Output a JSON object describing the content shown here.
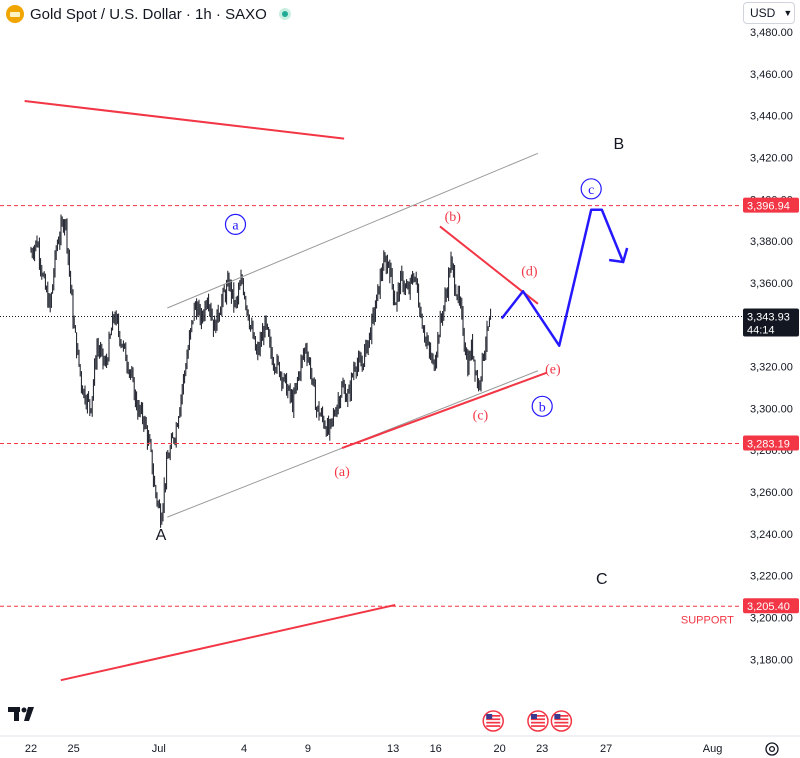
{
  "header": {
    "symbol_title": "Gold Spot / U.S. Dollar · 1h · SAXO",
    "icon": "gold-bars-icon",
    "status_icon": "market-open-icon"
  },
  "currency": {
    "label": "USD",
    "icon": "chevron-down-icon"
  },
  "logo": "tradingview-logo",
  "settings_icon": "gear-icon",
  "colors": {
    "candles": "#131722",
    "annotation_red": "#f23645",
    "projection_blue": "#2518ff",
    "channel_gray": "#9a9a9a",
    "axis_text": "#131722",
    "price_tag_red": "#f23645",
    "price_tag_dark": "#131722"
  },
  "chart_data": {
    "type": "candlestick",
    "title": "Gold Spot / U.S. Dollar · 1h · SAXO",
    "y_axis": {
      "min": 3170,
      "max": 3490,
      "ticks": [
        3180,
        3200,
        3220,
        3240,
        3260,
        3280,
        3300,
        3320,
        3340,
        3360,
        3380,
        3400,
        3420,
        3440,
        3460,
        3480
      ],
      "tick_labels": [
        "3,180.00",
        "3,200.00",
        "3,220.00",
        "3,240.00",
        "3,260.00",
        "3,280.00",
        "3,300.00",
        "3,320.00",
        "3,340.00",
        "3,360.00",
        "3,380.00",
        "3,400.00",
        "3,420.00",
        "3,440.00",
        "3,460.00",
        "3,480.00"
      ]
    },
    "x_axis": {
      "tick_labels": [
        "22",
        "25",
        "Jul",
        "4",
        "9",
        "13",
        "16",
        "20",
        "23",
        "27",
        "Aug"
      ],
      "tick_index": [
        0,
        2,
        6,
        10,
        13,
        17,
        19,
        22,
        24,
        27,
        32
      ]
    },
    "price_path": [
      [
        0,
        3375
      ],
      [
        0.3,
        3380
      ],
      [
        0.6,
        3360
      ],
      [
        0.9,
        3348
      ],
      [
        1.2,
        3378
      ],
      [
        1.6,
        3392
      ],
      [
        2.0,
        3340
      ],
      [
        2.4,
        3310
      ],
      [
        2.8,
        3300
      ],
      [
        3.1,
        3330
      ],
      [
        3.5,
        3320
      ],
      [
        3.9,
        3345
      ],
      [
        4.3,
        3330
      ],
      [
        4.6,
        3320
      ],
      [
        5.0,
        3300
      ],
      [
        5.3,
        3295
      ],
      [
        5.6,
        3280
      ],
      [
        5.8,
        3262
      ],
      [
        6.1,
        3248
      ],
      [
        6.4,
        3275
      ],
      [
        6.8,
        3290
      ],
      [
        7.1,
        3310
      ],
      [
        7.4,
        3330
      ],
      [
        7.7,
        3350
      ],
      [
        8.0,
        3342
      ],
      [
        8.3,
        3355
      ],
      [
        8.6,
        3338
      ],
      [
        8.9,
        3350
      ],
      [
        9.3,
        3360
      ],
      [
        9.6,
        3348
      ],
      [
        9.9,
        3362
      ],
      [
        10.2,
        3345
      ],
      [
        10.6,
        3325
      ],
      [
        11.0,
        3340
      ],
      [
        11.3,
        3325
      ],
      [
        11.7,
        3318
      ],
      [
        12.0,
        3310
      ],
      [
        12.3,
        3302
      ],
      [
        12.6,
        3318
      ],
      [
        12.9,
        3330
      ],
      [
        13.1,
        3320
      ],
      [
        13.4,
        3300
      ],
      [
        13.7,
        3295
      ],
      [
        14.0,
        3288
      ],
      [
        14.3,
        3300
      ],
      [
        14.6,
        3310
      ],
      [
        14.9,
        3305
      ],
      [
        15.2,
        3322
      ],
      [
        15.5,
        3320
      ],
      [
        15.9,
        3335
      ],
      [
        16.2,
        3350
      ],
      [
        16.5,
        3368
      ],
      [
        16.8,
        3370
      ],
      [
        17.1,
        3350
      ],
      [
        17.4,
        3362
      ],
      [
        17.7,
        3355
      ],
      [
        18.0,
        3365
      ],
      [
        18.3,
        3345
      ],
      [
        18.6,
        3330
      ],
      [
        18.9,
        3320
      ],
      [
        19.2,
        3340
      ],
      [
        19.5,
        3355
      ],
      [
        19.7,
        3370
      ],
      [
        19.9,
        3360
      ],
      [
        20.2,
        3345
      ],
      [
        20.5,
        3320
      ],
      [
        20.7,
        3330
      ],
      [
        21.0,
        3310
      ],
      [
        21.3,
        3330
      ],
      [
        21.6,
        3343.93
      ]
    ],
    "annotations": [
      {
        "text": "a",
        "kind": "circle-blue",
        "at": [
          9.6,
          3388
        ]
      },
      {
        "text": "b",
        "kind": "circle-blue",
        "at": [
          24.0,
          3301
        ]
      },
      {
        "text": "c",
        "kind": "circle-blue",
        "at": [
          26.3,
          3405
        ]
      },
      {
        "text": "(a)",
        "kind": "red",
        "at": [
          14.6,
          3270
        ]
      },
      {
        "text": "(b)",
        "kind": "red",
        "at": [
          19.8,
          3392
        ]
      },
      {
        "text": "(c)",
        "kind": "red",
        "at": [
          21.1,
          3297
        ]
      },
      {
        "text": "(d)",
        "kind": "red",
        "at": [
          23.4,
          3366
        ]
      },
      {
        "text": "(e)",
        "kind": "red",
        "at": [
          24.5,
          3319
        ]
      },
      {
        "text": "A",
        "kind": "black",
        "at": [
          6.1,
          3240
        ]
      },
      {
        "text": "B",
        "kind": "black",
        "at": [
          27.6,
          3427
        ]
      },
      {
        "text": "C",
        "kind": "black",
        "at": [
          26.8,
          3219
        ]
      },
      {
        "text": "SUPPORT",
        "kind": "support",
        "at": [
          33.0,
          3199
        ]
      }
    ],
    "trend_lines": [
      {
        "name": "red-downtrend-top",
        "color": "red",
        "from": [
          -0.3,
          3447
        ],
        "to": [
          14.7,
          3429
        ]
      },
      {
        "name": "gray-channel-upper",
        "color": "gray",
        "from": [
          6.4,
          3348
        ],
        "to": [
          23.8,
          3422
        ]
      },
      {
        "name": "gray-channel-lower",
        "color": "gray",
        "from": [
          6.4,
          3248
        ],
        "to": [
          23.8,
          3318
        ]
      },
      {
        "name": "red-triangle-upper",
        "color": "red",
        "from": [
          19.2,
          3387
        ],
        "to": [
          23.8,
          3350
        ]
      },
      {
        "name": "red-triangle-lower",
        "color": "red",
        "from": [
          14.6,
          3281
        ],
        "to": [
          24.2,
          3317
        ]
      },
      {
        "name": "red-support-line",
        "color": "red",
        "from": [
          1.4,
          3170
        ],
        "to": [
          17.1,
          3206
        ]
      }
    ],
    "projection": [
      [
        22.1,
        3343
      ],
      [
        23.1,
        3356
      ],
      [
        24.8,
        3330
      ],
      [
        26.3,
        3395
      ],
      [
        26.8,
        3395
      ],
      [
        27.8,
        3370
      ]
    ],
    "horizontal_levels": [
      {
        "value": 3396.94,
        "label": "3,396.94",
        "color": "red",
        "style": "dashed"
      },
      {
        "value": 3283.19,
        "label": "3,283.19",
        "color": "red",
        "style": "dashed"
      },
      {
        "value": 3205.4,
        "label": "3,205.40",
        "color": "red",
        "style": "dashed"
      },
      {
        "value": 3343.93,
        "label": "3,343.93",
        "sublabel": "44:14",
        "color": "dark",
        "style": "dotted"
      }
    ],
    "event_markers": [
      {
        "icon": "us-flag-event-icon",
        "at_index": 21.7
      },
      {
        "icon": "us-flag-event-icon",
        "at_index": 23.8
      },
      {
        "icon": "us-flag-event-icon",
        "at_index": 24.9
      }
    ]
  }
}
